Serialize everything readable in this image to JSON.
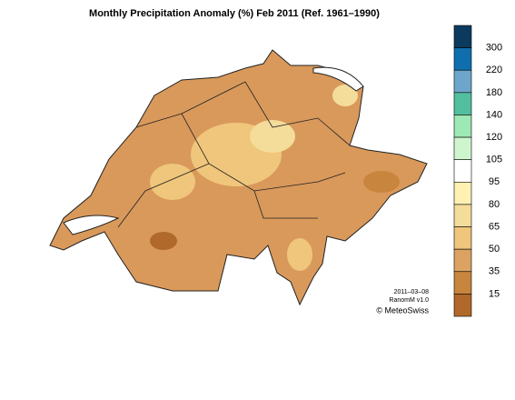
{
  "title": "Monthly Precipitation Anomaly (%) Feb 2011  (Ref. 1961–1990)",
  "legend": {
    "ticks": [
      300,
      220,
      180,
      140,
      120,
      105,
      95,
      80,
      65,
      50,
      35,
      15
    ],
    "colors": [
      "#0b3a5e",
      "#0f6fae",
      "#6ea6cb",
      "#52bf9f",
      "#9de8b4",
      "#cff5cf",
      "#ffffff",
      "#fff1b3",
      "#f4dc9a",
      "#efc67b",
      "#dba262",
      "#c8853e",
      "#b0692a"
    ]
  },
  "footer": {
    "date": "2011–03–08",
    "version": "RanomM v1.0",
    "credit": "© MeteoSwiss"
  }
}
